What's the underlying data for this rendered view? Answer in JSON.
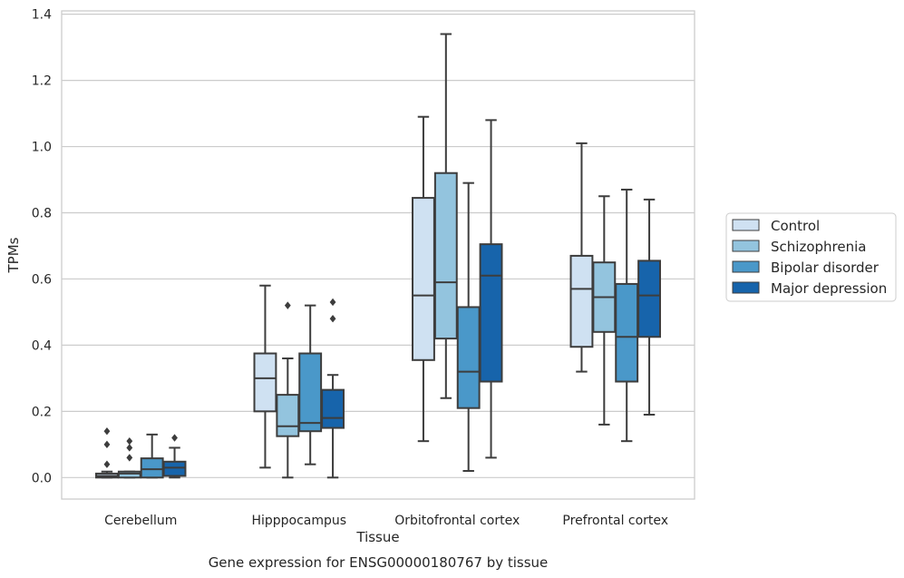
{
  "chart_data": {
    "type": "boxplot",
    "title": "Gene expression for ENSG00000180767 by tissue",
    "xlabel": "Tissue",
    "ylabel": "TPMs",
    "ylim": [
      -0.065,
      1.41
    ],
    "yticks": [
      "0.0",
      "0.2",
      "0.4",
      "0.6",
      "0.8",
      "1.0",
      "1.2",
      "1.4"
    ],
    "grid": true,
    "legend_position": "right",
    "categories": [
      "Cerebellum",
      "Hipppocampus",
      "Orbitofrontal cortex",
      "Prefrontal cortex"
    ],
    "series": [
      {
        "name": "Control",
        "color": "#cfe1f2",
        "boxes": [
          {
            "whislo": 0.0,
            "q1": 0.0,
            "med": 0.005,
            "q3": 0.012,
            "whishi": 0.018,
            "fliers": [
              0.04,
              0.1,
              0.14
            ]
          },
          {
            "whislo": 0.03,
            "q1": 0.2,
            "med": 0.3,
            "q3": 0.375,
            "whishi": 0.58,
            "fliers": []
          },
          {
            "whislo": 0.11,
            "q1": 0.355,
            "med": 0.55,
            "q3": 0.845,
            "whishi": 1.09,
            "fliers": []
          },
          {
            "whislo": 0.32,
            "q1": 0.395,
            "med": 0.57,
            "q3": 0.67,
            "whishi": 1.01,
            "fliers": []
          }
        ]
      },
      {
        "name": "Schizophrenia",
        "color": "#93c4de",
        "boxes": [
          {
            "whislo": 0.0,
            "q1": 0.0,
            "med": 0.012,
            "q3": 0.018,
            "whishi": 0.018,
            "fliers": [
              0.06,
              0.09,
              0.11
            ]
          },
          {
            "whislo": 0.0,
            "q1": 0.125,
            "med": 0.155,
            "q3": 0.25,
            "whishi": 0.36,
            "fliers": [
              0.52
            ]
          },
          {
            "whislo": 0.24,
            "q1": 0.42,
            "med": 0.59,
            "q3": 0.92,
            "whishi": 1.34,
            "fliers": []
          },
          {
            "whislo": 0.16,
            "q1": 0.44,
            "med": 0.545,
            "q3": 0.65,
            "whishi": 0.85,
            "fliers": []
          }
        ]
      },
      {
        "name": "Bipolar disorder",
        "color": "#4a98c9",
        "boxes": [
          {
            "whislo": 0.0,
            "q1": 0.0,
            "med": 0.025,
            "q3": 0.058,
            "whishi": 0.13,
            "fliers": []
          },
          {
            "whislo": 0.04,
            "q1": 0.14,
            "med": 0.165,
            "q3": 0.375,
            "whishi": 0.52,
            "fliers": []
          },
          {
            "whislo": 0.02,
            "q1": 0.21,
            "med": 0.32,
            "q3": 0.515,
            "whishi": 0.89,
            "fliers": []
          },
          {
            "whislo": 0.11,
            "q1": 0.29,
            "med": 0.425,
            "q3": 0.585,
            "whishi": 0.87,
            "fliers": []
          }
        ]
      },
      {
        "name": "Major depression",
        "color": "#1764ab",
        "boxes": [
          {
            "whislo": 0.0,
            "q1": 0.005,
            "med": 0.03,
            "q3": 0.048,
            "whishi": 0.09,
            "fliers": [
              0.12
            ]
          },
          {
            "whislo": 0.0,
            "q1": 0.15,
            "med": 0.18,
            "q3": 0.265,
            "whishi": 0.31,
            "fliers": [
              0.48,
              0.53
            ]
          },
          {
            "whislo": 0.06,
            "q1": 0.29,
            "med": 0.61,
            "q3": 0.705,
            "whishi": 1.08,
            "fliers": []
          },
          {
            "whislo": 0.19,
            "q1": 0.425,
            "med": 0.55,
            "q3": 0.655,
            "whishi": 0.84,
            "fliers": []
          }
        ]
      }
    ]
  }
}
